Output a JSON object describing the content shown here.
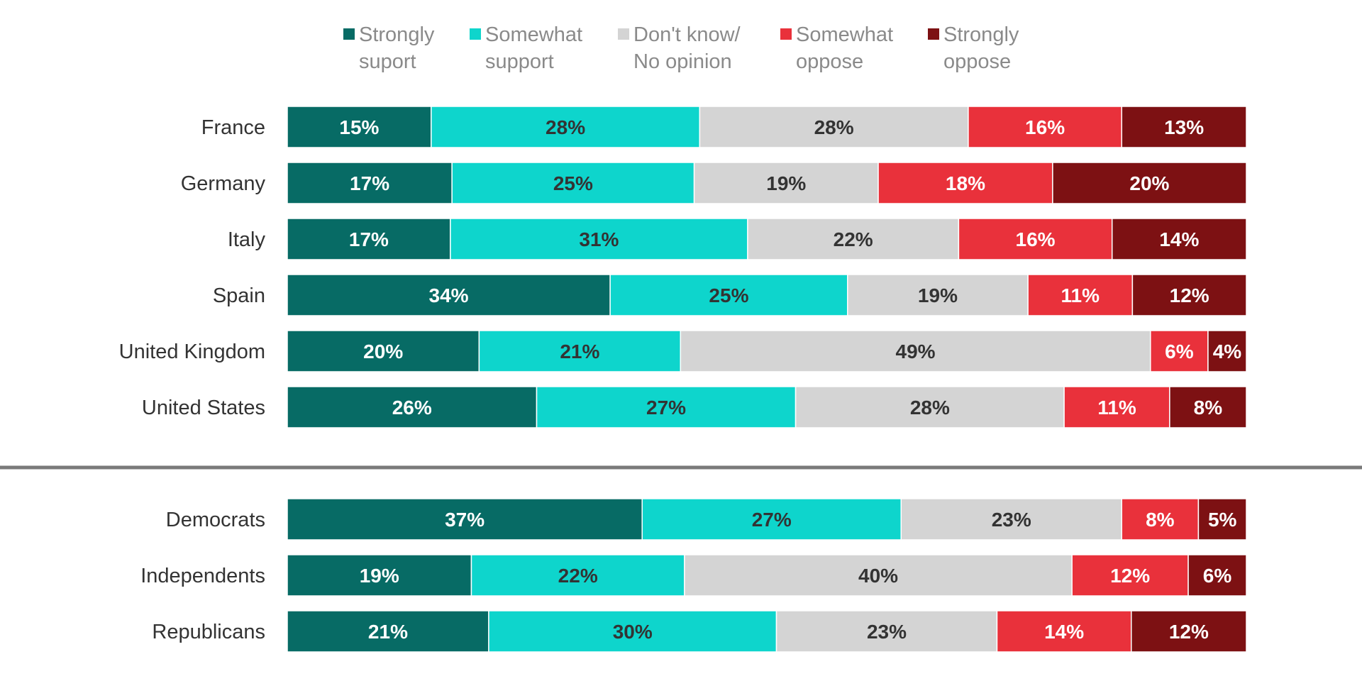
{
  "chart_data": {
    "type": "bar",
    "orientation": "horizontal",
    "stacked": true,
    "legend": [
      {
        "line1": "Strongly",
        "line2": "suport",
        "color": "#076b65"
      },
      {
        "line1": "Somewhat",
        "line2": "support",
        "color": "#0ed5cc"
      },
      {
        "line1": "Don't know/",
        "line2": "No opinion",
        "color": "#d4d4d4"
      },
      {
        "line1": "Somewhat",
        "line2": "oppose",
        "color": "#e9313b"
      },
      {
        "line1": "Strongly",
        "line2": "oppose",
        "color": "#7d1113"
      }
    ],
    "label_colors": [
      "#ffffff",
      "#333333",
      "#333333",
      "#ffffff",
      "#ffffff"
    ],
    "groups": [
      {
        "rows": [
          {
            "label": "France",
            "values": [
              15,
              28,
              28,
              16,
              13
            ]
          },
          {
            "label": "Germany",
            "values": [
              17,
              25,
              19,
              18,
              20
            ]
          },
          {
            "label": "Italy",
            "values": [
              17,
              31,
              22,
              16,
              14
            ]
          },
          {
            "label": "Spain",
            "values": [
              34,
              25,
              19,
              11,
              12
            ]
          },
          {
            "label": "United Kingdom",
            "values": [
              20,
              21,
              49,
              6,
              4
            ]
          },
          {
            "label": "United States",
            "values": [
              26,
              27,
              28,
              11,
              8
            ]
          }
        ]
      },
      {
        "rows": [
          {
            "label": "Democrats",
            "values": [
              37,
              27,
              23,
              8,
              5
            ]
          },
          {
            "label": "Independents",
            "values": [
              19,
              22,
              40,
              12,
              6
            ]
          },
          {
            "label": "Republicans",
            "values": [
              21,
              30,
              23,
              14,
              12
            ]
          }
        ]
      }
    ],
    "value_suffix": "%",
    "separator_color": "#7a7a7a"
  }
}
